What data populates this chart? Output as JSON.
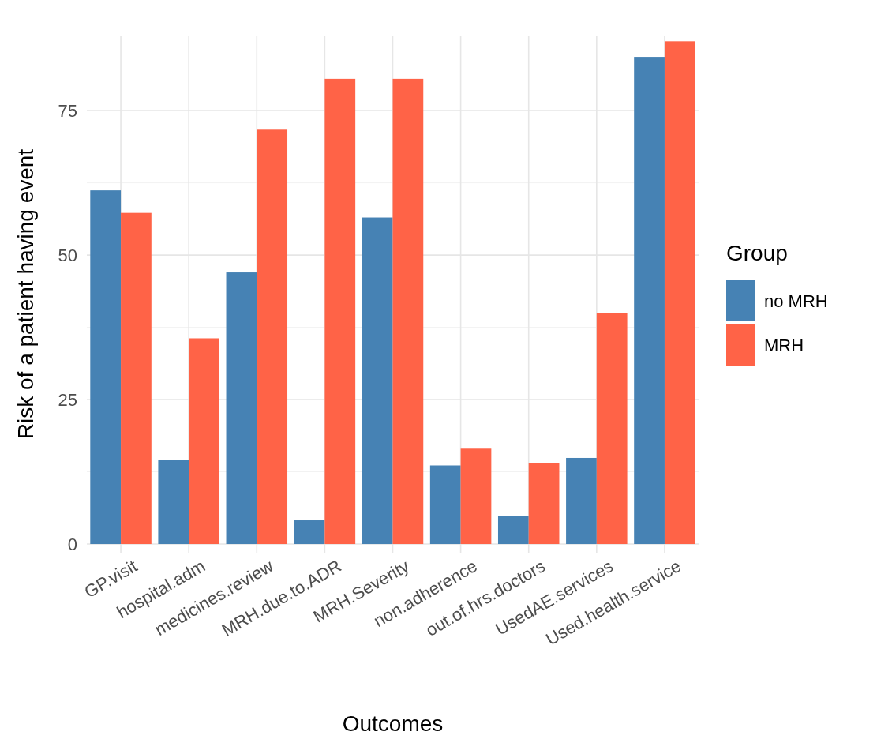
{
  "chart_data": {
    "type": "bar",
    "xlabel": "Outcomes",
    "ylabel": "Risk of a patient having event",
    "legend_title": "Group",
    "categories": [
      "GP.visit",
      "hospital.adm",
      "medicines.review",
      "MRH.due.to.ADR",
      "MRH.Severity",
      "non.adherence",
      "out.of.hrs.doctors",
      "UsedAE.services",
      "Used.health.service"
    ],
    "series": [
      {
        "name": "no MRH",
        "color": "#4682b4",
        "values": [
          61.2,
          14.6,
          47.0,
          4.1,
          56.5,
          13.6,
          4.8,
          14.9,
          84.3
        ]
      },
      {
        "name": "MRH",
        "color": "#ff6347",
        "values": [
          57.3,
          35.6,
          71.7,
          80.5,
          80.5,
          16.5,
          14.0,
          40.0,
          87.0
        ]
      }
    ],
    "ylim": [
      -1.5,
      88
    ],
    "yticks": [
      0,
      {
        "value": 12.5,
        "label": null
      },
      25,
      {
        "value": 37.5,
        "label": null
      },
      50,
      {
        "value": 62.5,
        "label": null
      },
      75
    ],
    "grid": true,
    "legend": "right"
  }
}
